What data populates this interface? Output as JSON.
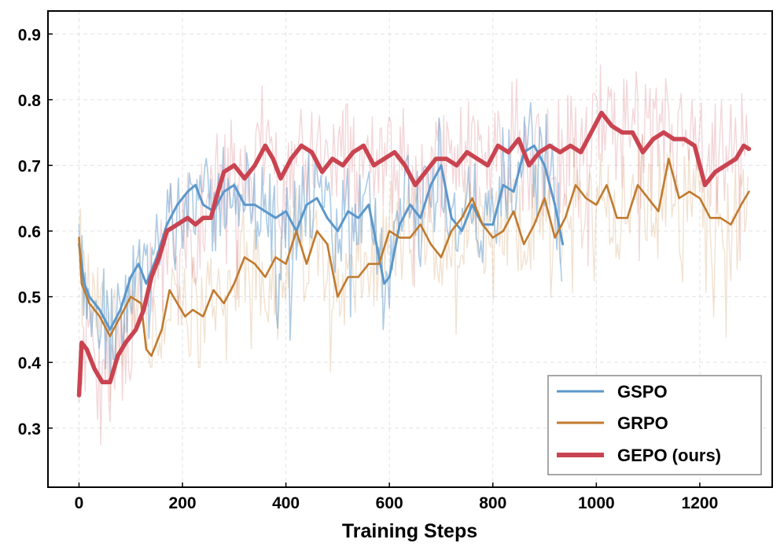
{
  "chart_data": {
    "type": "line",
    "title": "",
    "xlabel": "Training Steps",
    "ylabel": "",
    "xlim": [
      -60,
      1340
    ],
    "ylim": [
      0.21,
      0.935
    ],
    "xticks": [
      0,
      200,
      400,
      600,
      800,
      1000,
      1200
    ],
    "yticks": [
      0.3,
      0.4,
      0.5,
      0.6,
      0.7,
      0.8,
      0.9
    ],
    "xtick_labels": [
      "0",
      "200",
      "400",
      "600",
      "800",
      "1000",
      "1200"
    ],
    "ytick_labels": [
      "0.3",
      "0.4",
      "0.5",
      "0.6",
      "0.7",
      "0.8",
      "0.9"
    ],
    "grid": true,
    "legend_position": "lower-right",
    "series": [
      {
        "name": "GSPO",
        "color": "#5b97cb",
        "smoothed": {
          "x": [
            0,
            10,
            20,
            40,
            60,
            80,
            100,
            115,
            130,
            150,
            170,
            190,
            210,
            225,
            240,
            260,
            280,
            300,
            320,
            340,
            360,
            380,
            400,
            420,
            440,
            460,
            480,
            500,
            520,
            540,
            560,
            580,
            590,
            600,
            620,
            640,
            660,
            680,
            700,
            720,
            740,
            760,
            780,
            800,
            820,
            840,
            860,
            880,
            900,
            920,
            935
          ],
          "y": [
            0.58,
            0.52,
            0.5,
            0.48,
            0.45,
            0.48,
            0.53,
            0.55,
            0.52,
            0.56,
            0.61,
            0.64,
            0.66,
            0.67,
            0.64,
            0.63,
            0.66,
            0.67,
            0.64,
            0.64,
            0.63,
            0.62,
            0.63,
            0.6,
            0.64,
            0.65,
            0.62,
            0.6,
            0.63,
            0.62,
            0.64,
            0.56,
            0.52,
            0.53,
            0.61,
            0.64,
            0.62,
            0.67,
            0.7,
            0.62,
            0.6,
            0.64,
            0.61,
            0.61,
            0.67,
            0.66,
            0.72,
            0.73,
            0.7,
            0.64,
            0.58
          ]
        }
      },
      {
        "name": "GRPO",
        "color": "#c07a2e",
        "smoothed": {
          "x": [
            0,
            5,
            20,
            40,
            60,
            80,
            100,
            120,
            130,
            140,
            160,
            175,
            190,
            205,
            220,
            240,
            260,
            280,
            300,
            320,
            340,
            360,
            380,
            400,
            420,
            440,
            460,
            480,
            500,
            520,
            540,
            560,
            580,
            600,
            620,
            640,
            660,
            680,
            700,
            720,
            740,
            760,
            780,
            800,
            820,
            840,
            860,
            880,
            900,
            920,
            940,
            960,
            980,
            1000,
            1020,
            1040,
            1060,
            1080,
            1100,
            1120,
            1140,
            1160,
            1180,
            1200,
            1220,
            1240,
            1260,
            1280,
            1295
          ],
          "y": [
            0.59,
            0.52,
            0.49,
            0.47,
            0.44,
            0.47,
            0.5,
            0.49,
            0.42,
            0.41,
            0.45,
            0.51,
            0.49,
            0.47,
            0.48,
            0.47,
            0.51,
            0.49,
            0.52,
            0.56,
            0.55,
            0.53,
            0.56,
            0.55,
            0.6,
            0.55,
            0.6,
            0.58,
            0.5,
            0.53,
            0.53,
            0.55,
            0.55,
            0.6,
            0.59,
            0.59,
            0.61,
            0.58,
            0.56,
            0.6,
            0.62,
            0.65,
            0.61,
            0.59,
            0.6,
            0.63,
            0.58,
            0.61,
            0.65,
            0.59,
            0.62,
            0.67,
            0.65,
            0.64,
            0.67,
            0.62,
            0.62,
            0.67,
            0.65,
            0.63,
            0.71,
            0.65,
            0.66,
            0.65,
            0.62,
            0.62,
            0.61,
            0.64,
            0.66
          ]
        }
      },
      {
        "name": "GEPO (ours)",
        "color": "#c94450",
        "smoothed": {
          "x": [
            0,
            5,
            15,
            30,
            45,
            60,
            75,
            90,
            110,
            125,
            140,
            155,
            170,
            190,
            210,
            225,
            240,
            255,
            265,
            280,
            300,
            320,
            340,
            360,
            375,
            390,
            410,
            430,
            450,
            470,
            490,
            510,
            530,
            550,
            570,
            590,
            610,
            630,
            650,
            670,
            690,
            710,
            730,
            750,
            770,
            790,
            810,
            830,
            850,
            870,
            890,
            910,
            930,
            950,
            970,
            990,
            1010,
            1030,
            1050,
            1070,
            1090,
            1110,
            1130,
            1150,
            1170,
            1190,
            1210,
            1230,
            1250,
            1270,
            1285,
            1295
          ],
          "y": [
            0.35,
            0.43,
            0.42,
            0.39,
            0.37,
            0.37,
            0.41,
            0.43,
            0.45,
            0.48,
            0.53,
            0.56,
            0.6,
            0.61,
            0.62,
            0.61,
            0.62,
            0.62,
            0.65,
            0.69,
            0.7,
            0.68,
            0.7,
            0.73,
            0.71,
            0.68,
            0.71,
            0.73,
            0.72,
            0.69,
            0.71,
            0.7,
            0.72,
            0.73,
            0.7,
            0.71,
            0.72,
            0.7,
            0.67,
            0.69,
            0.71,
            0.71,
            0.7,
            0.72,
            0.71,
            0.7,
            0.73,
            0.72,
            0.74,
            0.7,
            0.72,
            0.73,
            0.72,
            0.73,
            0.72,
            0.75,
            0.78,
            0.76,
            0.75,
            0.75,
            0.72,
            0.74,
            0.75,
            0.74,
            0.74,
            0.73,
            0.67,
            0.69,
            0.7,
            0.71,
            0.73,
            0.725
          ]
        }
      }
    ]
  }
}
